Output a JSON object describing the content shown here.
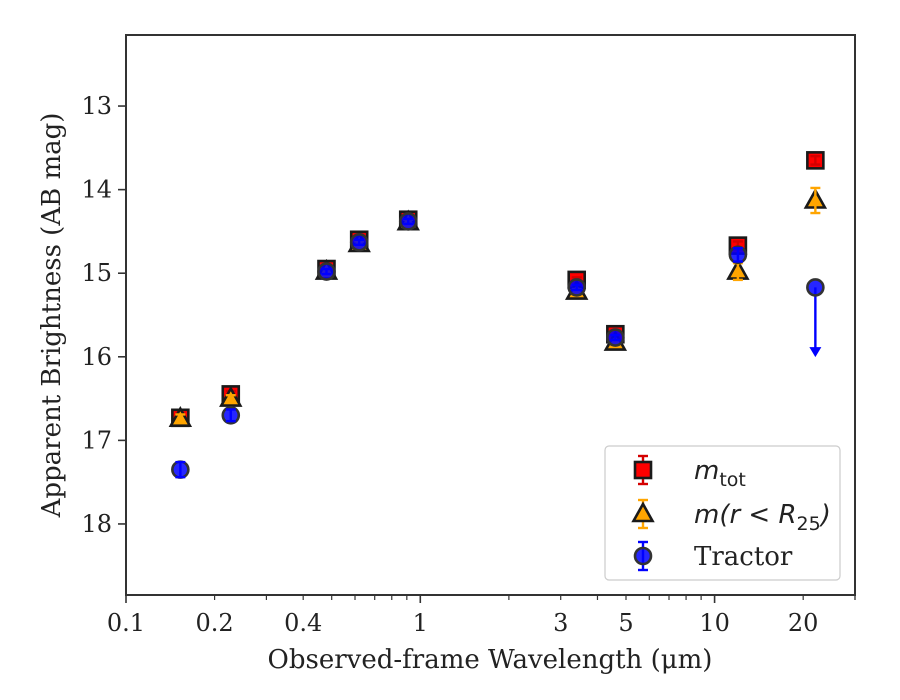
{
  "chart_data": {
    "type": "scatter",
    "xlabel": "Observed-frame Wavelength (μm)",
    "ylabel": "Apparent Brightness (AB mag)",
    "xscale": "log",
    "xlim": [
      0.1,
      30
    ],
    "ylim": [
      18.85,
      12.15
    ],
    "y_inverted": true,
    "xticks": [
      {
        "value": 0.1,
        "label": "0.1"
      },
      {
        "value": 0.2,
        "label": "0.2"
      },
      {
        "value": 0.4,
        "label": "0.4"
      },
      {
        "value": 1,
        "label": "1"
      },
      {
        "value": 3,
        "label": "3"
      },
      {
        "value": 5,
        "label": "5"
      },
      {
        "value": 10,
        "label": "10"
      },
      {
        "value": 20,
        "label": "20"
      }
    ],
    "yticks": [
      {
        "value": 13,
        "label": "13"
      },
      {
        "value": 14,
        "label": "14"
      },
      {
        "value": 15,
        "label": "15"
      },
      {
        "value": 16,
        "label": "16"
      },
      {
        "value": 17,
        "label": "17"
      },
      {
        "value": 18,
        "label": "18"
      }
    ],
    "legend_position": "lower-right",
    "series": [
      {
        "name": "m_tot",
        "legend_label": {
          "main": "m",
          "sub": "tot"
        },
        "marker": "square",
        "color": "#ff0000",
        "edge_color": "#1a1a1a",
        "errbar_color": "#d40000",
        "points": [
          {
            "x": 0.153,
            "y": 16.73,
            "err": 0.05
          },
          {
            "x": 0.227,
            "y": 16.45,
            "err": 0.04
          },
          {
            "x": 0.48,
            "y": 14.95,
            "err": 0.03
          },
          {
            "x": 0.62,
            "y": 14.6,
            "err": 0.03
          },
          {
            "x": 0.91,
            "y": 14.36,
            "err": 0.03
          },
          {
            "x": 3.4,
            "y": 15.08,
            "err": 0.03
          },
          {
            "x": 4.6,
            "y": 15.73,
            "err": 0.03
          },
          {
            "x": 12.0,
            "y": 14.67,
            "err": 0.05
          },
          {
            "x": 22.0,
            "y": 13.65,
            "err": 0.05
          }
        ]
      },
      {
        "name": "m(r < R25)",
        "legend_label": {
          "main": "m(r < R",
          "sub": "25",
          "after": ")"
        },
        "marker": "triangle",
        "color": "#ffa500",
        "edge_color": "#1a1a1a",
        "errbar_color": "#ffa500",
        "points": [
          {
            "x": 0.153,
            "y": 16.74,
            "err": 0.05
          },
          {
            "x": 0.227,
            "y": 16.5,
            "err": 0.04
          },
          {
            "x": 0.48,
            "y": 14.98,
            "err": 0.03
          },
          {
            "x": 0.62,
            "y": 14.65,
            "err": 0.03
          },
          {
            "x": 0.91,
            "y": 14.39,
            "err": 0.03
          },
          {
            "x": 3.4,
            "y": 15.22,
            "err": 0.03
          },
          {
            "x": 4.6,
            "y": 15.83,
            "err": 0.03
          },
          {
            "x": 12.0,
            "y": 14.98,
            "err": 0.1
          },
          {
            "x": 22.0,
            "y": 14.13,
            "err": 0.15
          }
        ]
      },
      {
        "name": "Tractor",
        "legend_label": {
          "main": "Tractor"
        },
        "marker": "circle",
        "color": "#0000ff",
        "edge_color": "#333333",
        "errbar_color": "#0000ff",
        "points": [
          {
            "x": 0.153,
            "y": 17.35,
            "err": 0.09
          },
          {
            "x": 0.227,
            "y": 16.7,
            "err": 0.07
          },
          {
            "x": 0.48,
            "y": 14.98,
            "err": 0.03
          },
          {
            "x": 0.62,
            "y": 14.63,
            "err": 0.03
          },
          {
            "x": 0.91,
            "y": 14.38,
            "err": 0.03
          },
          {
            "x": 3.4,
            "y": 15.17,
            "err": 0.03
          },
          {
            "x": 4.6,
            "y": 15.77,
            "err": 0.03
          },
          {
            "x": 12.0,
            "y": 14.78,
            "err": 0.08
          },
          {
            "x": 22.0,
            "y": 15.17,
            "err": 0,
            "upper_limit": true,
            "limit_to": 15.98
          }
        ]
      }
    ]
  }
}
